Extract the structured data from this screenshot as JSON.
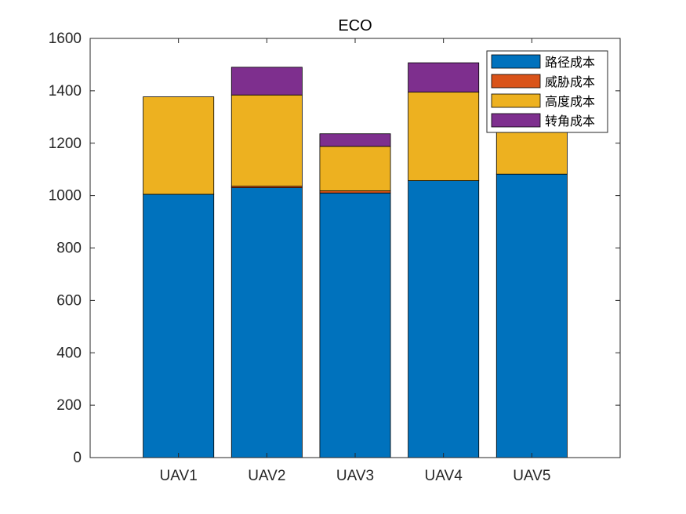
{
  "chart_data": {
    "type": "bar",
    "stacked": true,
    "title": "ECO",
    "xlabel": "",
    "ylabel": "",
    "categories": [
      "UAV1",
      "UAV2",
      "UAV3",
      "UAV4",
      "UAV5"
    ],
    "ylim": [
      0,
      1600
    ],
    "yticks": [
      "0",
      "200",
      "400",
      "600",
      "800",
      "1000",
      "1200",
      "1400",
      "1600"
    ],
    "series": [
      {
        "name": "路径成本",
        "color": "#0072BD",
        "values": [
          1005,
          1030,
          1010,
          1057,
          1082
        ]
      },
      {
        "name": "威胁成本",
        "color": "#D95319",
        "values": [
          0,
          6,
          8,
          0,
          0
        ]
      },
      {
        "name": "高度成本",
        "color": "#EDB120",
        "values": [
          372,
          348,
          170,
          338,
          212
        ]
      },
      {
        "name": "转角成本",
        "color": "#7E2F8E",
        "values": [
          0,
          106,
          48,
          112,
          58
        ]
      }
    ],
    "legend_position": "top-right",
    "grid": false
  }
}
